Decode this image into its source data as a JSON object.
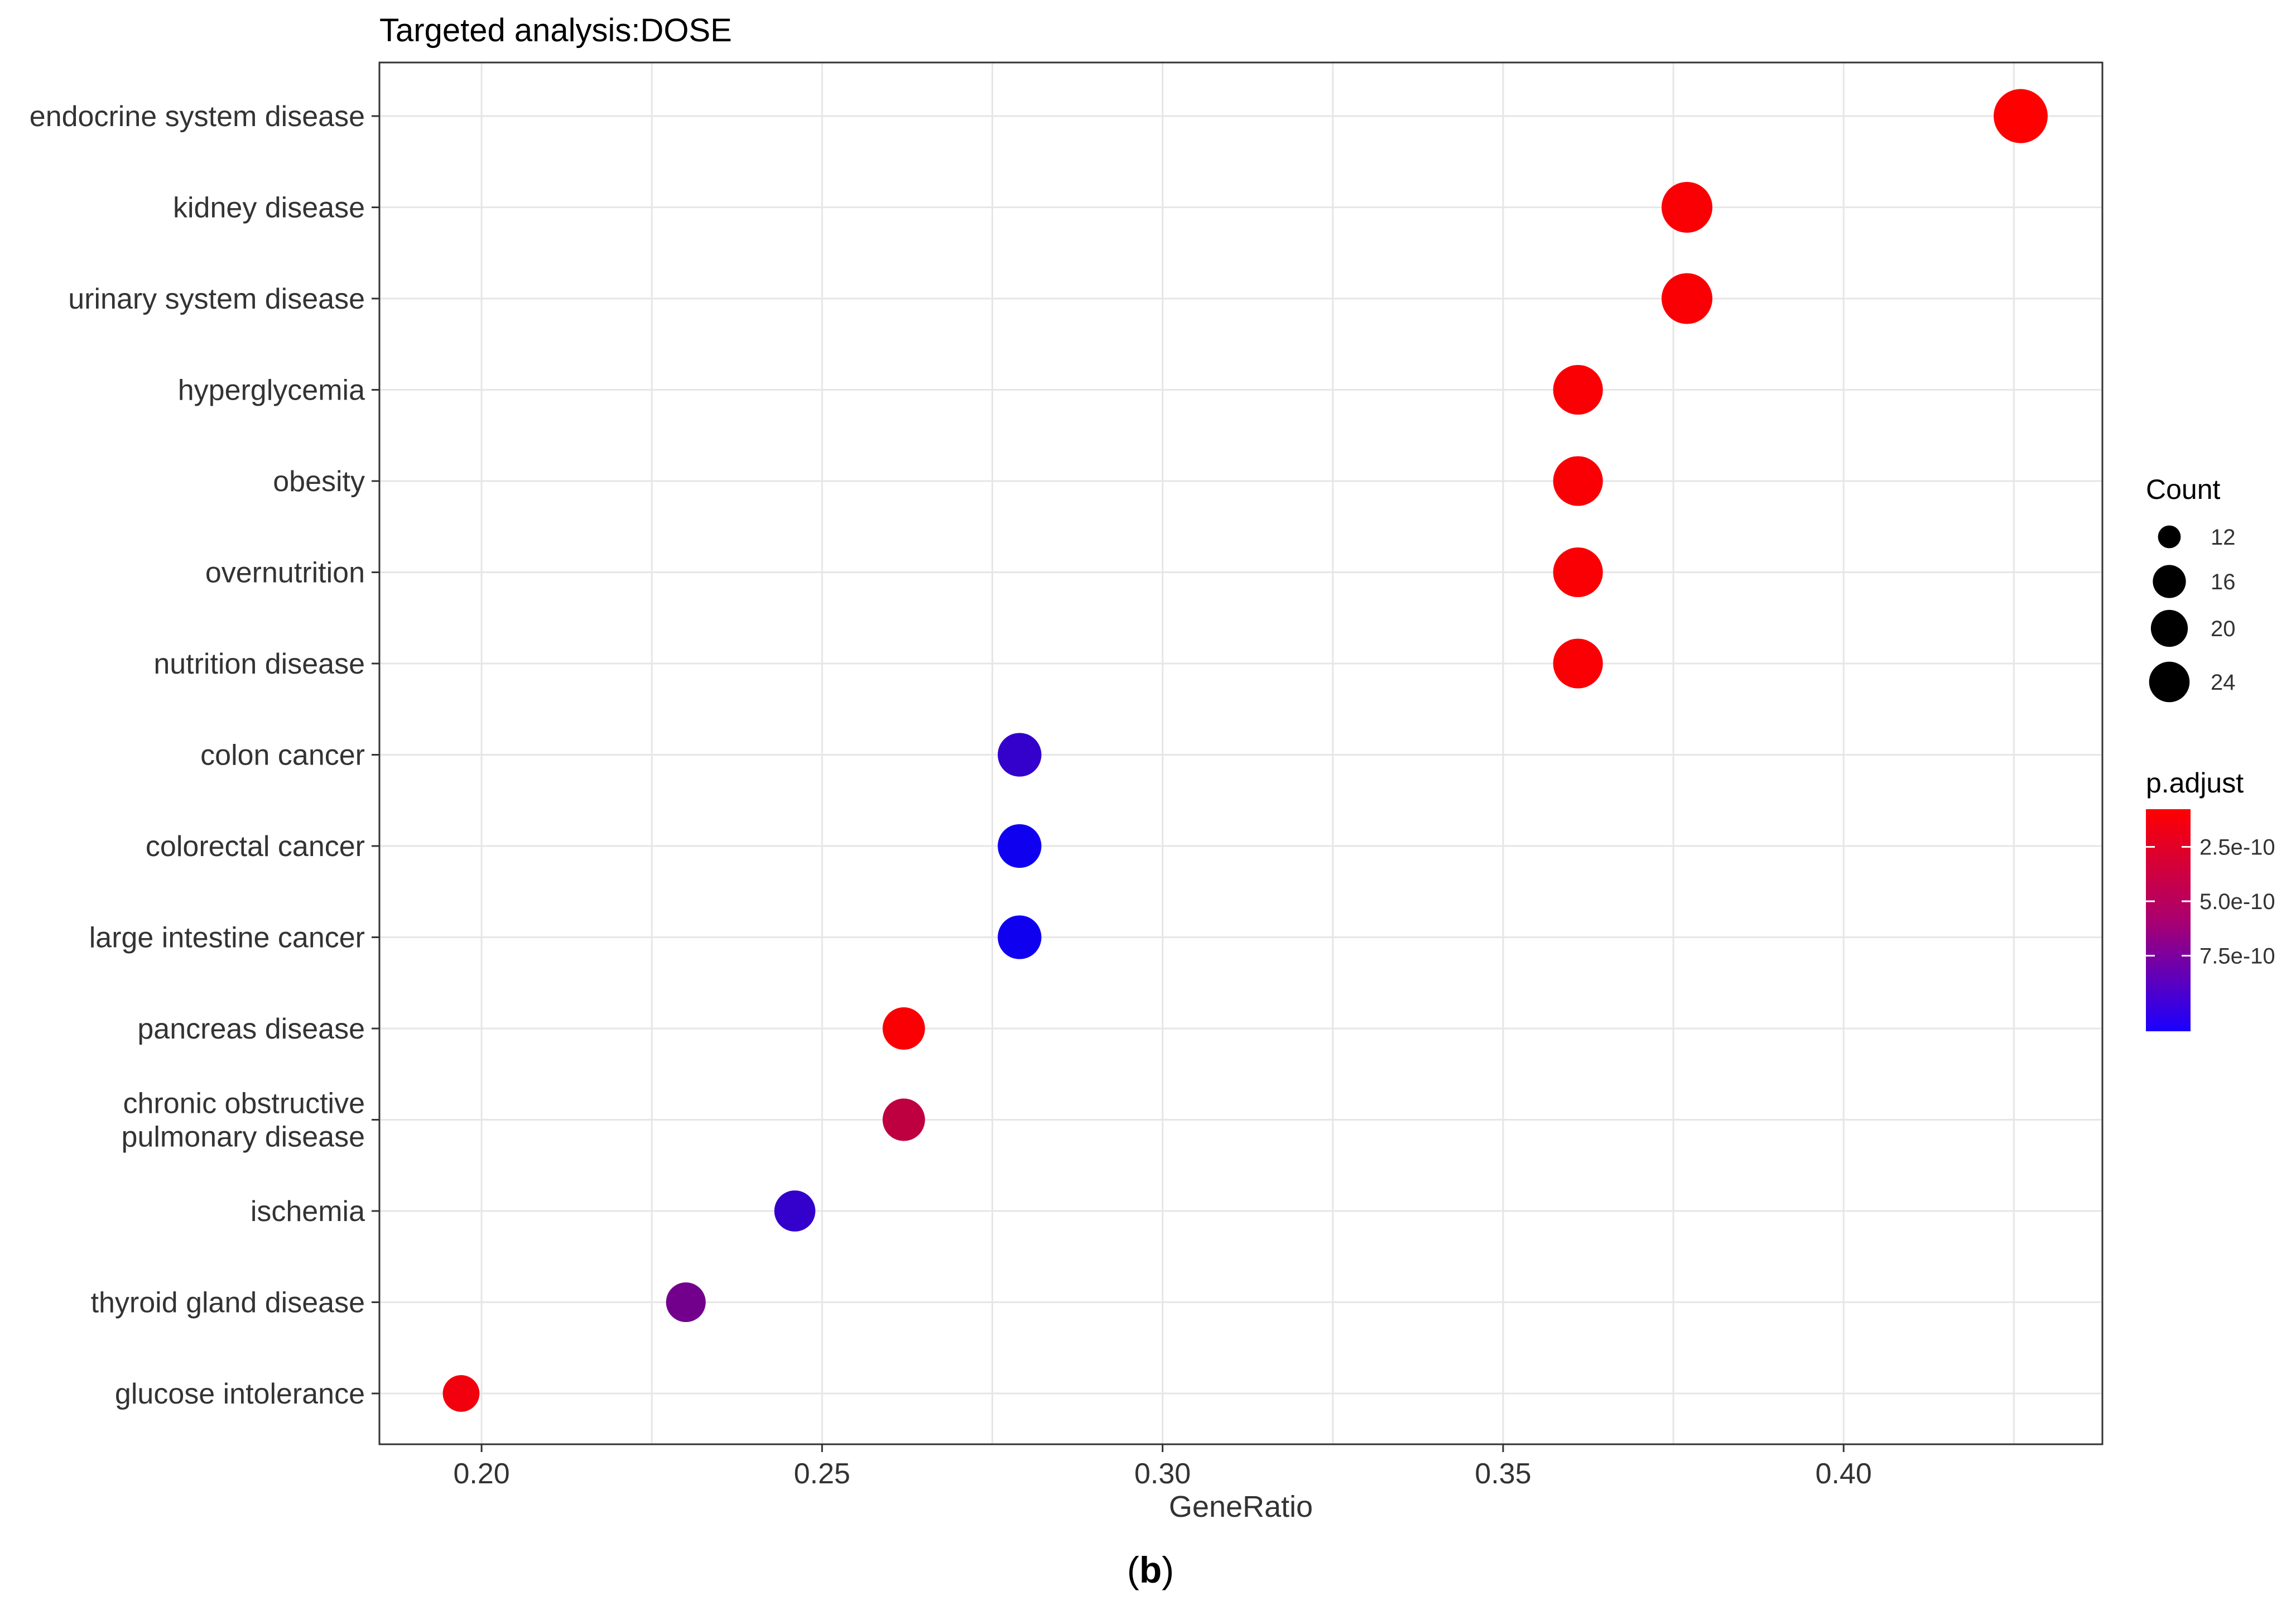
{
  "caption": {
    "open": "(",
    "letter": "b",
    "close": ")"
  },
  "chart_data": {
    "type": "scatter",
    "title": "Targeted analysis:DOSE",
    "xlabel": "GeneRatio",
    "ylabel": "",
    "xlim": [
      0.185,
      0.438
    ],
    "xticks": [
      0.2,
      0.25,
      0.3,
      0.35,
      0.4
    ],
    "xtick_labels": [
      "0.20",
      "0.25",
      "0.30",
      "0.35",
      "0.40"
    ],
    "grid": true,
    "legend_position": "right",
    "categories": [
      "endocrine system disease",
      "kidney disease",
      "urinary system disease",
      "hyperglycemia",
      "obesity",
      "overnutrition",
      "nutrition disease",
      "colon cancer",
      "colorectal cancer",
      "large intestine cancer",
      "pancreas disease",
      "chronic obstructive pulmonary disease",
      "ischemia",
      "thyroid gland disease",
      "glucose intolerance"
    ],
    "category_lines": [
      [
        "endocrine system disease"
      ],
      [
        "kidney disease"
      ],
      [
        "urinary system disease"
      ],
      [
        "hyperglycemia"
      ],
      [
        "obesity"
      ],
      [
        "overnutrition"
      ],
      [
        "nutrition disease"
      ],
      [
        "colon cancer"
      ],
      [
        "colorectal cancer"
      ],
      [
        "large intestine cancer"
      ],
      [
        "pancreas disease"
      ],
      [
        "chronic obstructive",
        "pulmonary disease"
      ],
      [
        "ischemia"
      ],
      [
        "thyroid gland disease"
      ],
      [
        "glucose intolerance"
      ]
    ],
    "points": [
      {
        "category": "endocrine system disease",
        "gene_ratio": 0.426,
        "count": 26,
        "p_adjust": 1e-12
      },
      {
        "category": "kidney disease",
        "gene_ratio": 0.377,
        "count": 23,
        "p_adjust": 2e-11
      },
      {
        "category": "urinary system disease",
        "gene_ratio": 0.377,
        "count": 23,
        "p_adjust": 2e-11
      },
      {
        "category": "hyperglycemia",
        "gene_ratio": 0.361,
        "count": 22,
        "p_adjust": 2e-11
      },
      {
        "category": "obesity",
        "gene_ratio": 0.361,
        "count": 22,
        "p_adjust": 2e-11
      },
      {
        "category": "overnutrition",
        "gene_ratio": 0.361,
        "count": 22,
        "p_adjust": 2e-11
      },
      {
        "category": "nutrition disease",
        "gene_ratio": 0.361,
        "count": 22,
        "p_adjust": 2e-11
      },
      {
        "category": "colon cancer",
        "gene_ratio": 0.279,
        "count": 17,
        "p_adjust": 8e-10
      },
      {
        "category": "colorectal cancer",
        "gene_ratio": 0.279,
        "count": 17,
        "p_adjust": 9.4e-10
      },
      {
        "category": "large intestine cancer",
        "gene_ratio": 0.279,
        "count": 17,
        "p_adjust": 9.4e-10
      },
      {
        "category": "pancreas disease",
        "gene_ratio": 0.262,
        "count": 16,
        "p_adjust": 2e-11
      },
      {
        "category": "chronic obstructive pulmonary disease",
        "gene_ratio": 0.262,
        "count": 16,
        "p_adjust": 2.5e-10
      },
      {
        "category": "ischemia",
        "gene_ratio": 0.246,
        "count": 15,
        "p_adjust": 8e-10
      },
      {
        "category": "thyroid gland disease",
        "gene_ratio": 0.23,
        "count": 14,
        "p_adjust": 5.5e-10
      },
      {
        "category": "glucose intolerance",
        "gene_ratio": 0.197,
        "count": 12,
        "p_adjust": 5e-11
      }
    ],
    "size_legend": {
      "title": "Count",
      "values": [
        12,
        16,
        20,
        24
      ],
      "labels": [
        "12",
        "16",
        "20",
        "24"
      ]
    },
    "color_legend": {
      "title": "p.adjust",
      "low_color": "#ff0000",
      "high_color": "#0000ff",
      "range": [
        0,
        1e-09
      ],
      "tick_values": [
        2.5e-10,
        5e-10,
        7.5e-10
      ],
      "tick_labels": [
        "2.5e-10",
        "5.0e-10",
        "7.5e-10"
      ]
    }
  }
}
